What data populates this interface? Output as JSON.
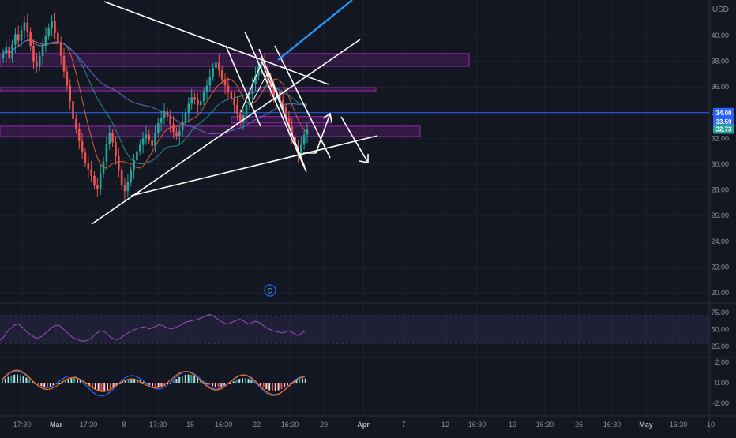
{
  "chart_data": {
    "type": "candlestick",
    "currency": "USD",
    "price_axis": {
      "ticks": [
        "40.00",
        "38.00",
        "36.00",
        "34.00",
        "32.00",
        "30.00",
        "28.00",
        "26.00",
        "24.00",
        "22.00",
        "20.00"
      ],
      "range": [
        19.5,
        41.4
      ]
    },
    "price_badges": [
      {
        "value": "34.00",
        "color": "#2962ff"
      },
      {
        "value": "33.59",
        "color": "#2962ff"
      },
      {
        "value": "32.73",
        "color": "#26a69a"
      }
    ],
    "time_axis": {
      "labels": [
        "17:30",
        "Mar",
        "17:30",
        "8",
        "17:30",
        "15",
        "16:30",
        "22",
        "16:30",
        "29",
        "Apr",
        "7",
        "12",
        "16:30",
        "19",
        "16:30",
        "26",
        "16:30",
        "May",
        "16:30",
        "10"
      ],
      "bold_labels": [
        "Mar",
        "Apr",
        "May"
      ]
    },
    "price_series_close": [
      38.6,
      39.1,
      38.2,
      39.3,
      40.1,
      39.6,
      40.4,
      41.0,
      40.3,
      39.2,
      38.0,
      37.6,
      38.4,
      39.2,
      40.0,
      40.6,
      41.1,
      40.2,
      39.4,
      38.4,
      37.2,
      36.1,
      34.9,
      33.5,
      32.7,
      31.8,
      30.9,
      30.1,
      29.6,
      29.1,
      28.4,
      28.1,
      29.3,
      30.2,
      31.6,
      32.4,
      31.7,
      30.6,
      29.5,
      28.4,
      27.9,
      28.6,
      29.5,
      30.3,
      31.0,
      31.5,
      32.0,
      32.3,
      31.9,
      31.4,
      32.4,
      33.2,
      33.6,
      34.1,
      33.7,
      33.1,
      32.5,
      32.2,
      32.6,
      33.3,
      34.0,
      34.7,
      35.2,
      35.0,
      34.6,
      34.9,
      35.6,
      36.1,
      36.8,
      37.5,
      37.9,
      37.3,
      36.6,
      36.1,
      35.6,
      35.1,
      34.6,
      33.9,
      33.3,
      33.8,
      34.6,
      35.5,
      36.2,
      36.9,
      37.6,
      38.0,
      37.4,
      36.6,
      35.9,
      35.3,
      35.6,
      35.0,
      34.4,
      33.6,
      32.9,
      32.1,
      31.4,
      30.8,
      31.5,
      32.3,
      32.7
    ],
    "support_resistance_zones": [
      [
        38.6,
        37.6
      ],
      [
        35.95,
        35.7
      ],
      [
        33.7,
        33.2
      ],
      [
        32.95,
        32.15
      ]
    ],
    "horizontal_lines": [
      34.0,
      33.59,
      32.73
    ],
    "rsi": {
      "levels": [
        "75.00",
        "50.00",
        "25.00"
      ],
      "upper_band": 70,
      "lower_band": 30
    },
    "macd": {
      "levels": [
        "2.00",
        "0.00",
        "-2.00"
      ]
    },
    "event_marker": "D"
  }
}
